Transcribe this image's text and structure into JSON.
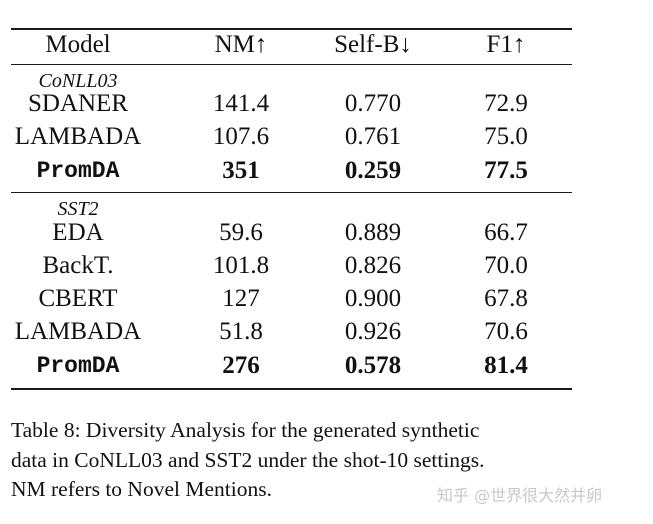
{
  "table": {
    "headers": [
      "Model",
      "NM↑",
      "Self-B↓",
      "F1↑"
    ],
    "sections": [
      {
        "name": "CoNLL03",
        "rows": [
          {
            "model": "SDANER",
            "nm": "141.4",
            "selfb": "0.770",
            "f1": "72.9"
          },
          {
            "model": "LAMBADA",
            "nm": "107.6",
            "selfb": "0.761",
            "f1": "75.0"
          },
          {
            "model": "PromDA",
            "nm": "351",
            "selfb": "0.259",
            "f1": "77.5"
          }
        ]
      },
      {
        "name": "SST2",
        "rows": [
          {
            "model": "EDA",
            "nm": "59.6",
            "selfb": "0.889",
            "f1": "66.7"
          },
          {
            "model": "BackT.",
            "nm": "101.8",
            "selfb": "0.826",
            "f1": "70.0"
          },
          {
            "model": "CBERT",
            "nm": "127",
            "selfb": "0.900",
            "f1": "67.8"
          },
          {
            "model": "LAMBADA",
            "nm": "51.8",
            "selfb": "0.926",
            "f1": "70.6"
          },
          {
            "model": "PromDA",
            "nm": "276",
            "selfb": "0.578",
            "f1": "81.4"
          }
        ]
      }
    ]
  },
  "caption": {
    "lines": [
      "Table 8: Diversity Analysis for the generated synthetic",
      "data in CoNLL03 and SST2 under the shot-10 settings.",
      "NM refers to Novel Mentions."
    ]
  },
  "watermark": "知乎 @世界很大然并卵"
}
